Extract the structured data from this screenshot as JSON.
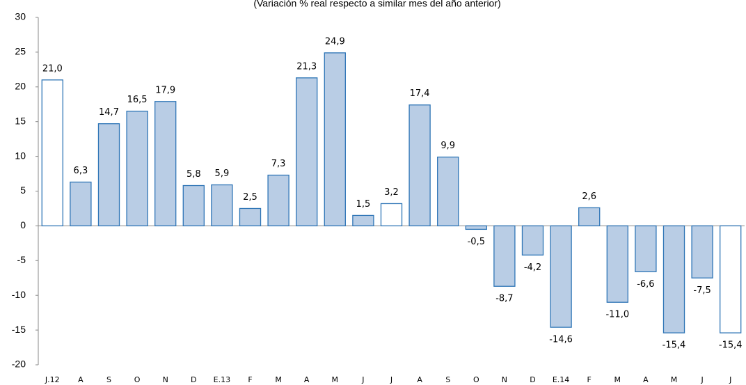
{
  "chart_data": {
    "type": "bar",
    "subtitle": "(Variación % real respecto a similar mes del año anterior)",
    "categories": [
      "J.12",
      "A",
      "S",
      "O",
      "N",
      "D",
      "E.13",
      "F",
      "M",
      "A",
      "M",
      "J",
      "J",
      "A",
      "S",
      "O",
      "N",
      "D",
      "E.14",
      "F",
      "M",
      "A",
      "M",
      "J",
      "J"
    ],
    "values": [
      21.0,
      6.3,
      14.7,
      16.5,
      17.9,
      5.8,
      5.9,
      2.5,
      7.3,
      21.3,
      24.9,
      1.5,
      3.2,
      17.4,
      9.9,
      -0.5,
      -8.7,
      -4.2,
      -14.6,
      2.6,
      -11.0,
      -6.6,
      -15.4,
      -7.5,
      -15.4
    ],
    "value_labels": [
      "21,0",
      "6,3",
      "14,7",
      "16,5",
      "17,9",
      "5,8",
      "5,9",
      "2,5",
      "7,3",
      "21,3",
      "24,9",
      "1,5",
      "3,2",
      "17,4",
      "9,9",
      "-0,5",
      "-8,7",
      "-4,2",
      "-14,6",
      "2,6",
      "-11,0",
      "-6,6",
      "-15,4",
      "-7,5",
      "-15,4"
    ],
    "colors": [
      "#ffffff",
      "#b9cde5",
      "#b9cde5",
      "#b9cde5",
      "#b9cde5",
      "#b9cde5",
      "#b9cde5",
      "#b9cde5",
      "#b9cde5",
      "#b9cde5",
      "#b9cde5",
      "#b9cde5",
      "#ffffff",
      "#b9cde5",
      "#b9cde5",
      "#b9cde5",
      "#b9cde5",
      "#b9cde5",
      "#b9cde5",
      "#b9cde5",
      "#b9cde5",
      "#b9cde5",
      "#b9cde5",
      "#b9cde5",
      "#ffffff"
    ],
    "edge_color": "#2e75b6",
    "ylim": [
      -20,
      30
    ],
    "yticks": [
      -20,
      -15,
      -10,
      -5,
      0,
      5,
      10,
      15,
      20,
      25,
      30
    ],
    "grid": false
  }
}
